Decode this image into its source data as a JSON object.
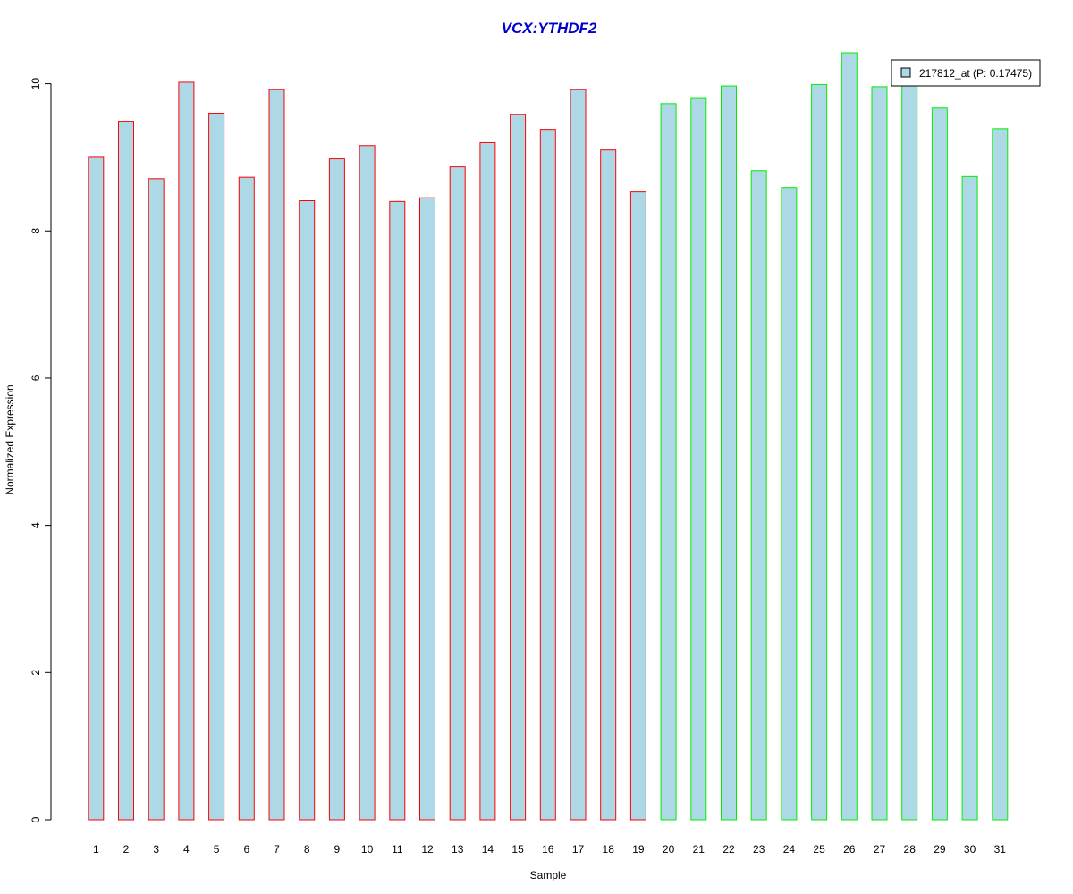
{
  "chart_data": {
    "type": "bar",
    "title": "VCX:YTHDF2",
    "xlabel": "Sample",
    "ylabel": "Normalized Expression",
    "categories": [
      "1",
      "2",
      "3",
      "4",
      "5",
      "6",
      "7",
      "8",
      "9",
      "10",
      "11",
      "12",
      "13",
      "14",
      "15",
      "16",
      "17",
      "18",
      "19",
      "20",
      "21",
      "22",
      "23",
      "24",
      "25",
      "26",
      "27",
      "28",
      "29",
      "30",
      "31"
    ],
    "series": [
      {
        "name": "217812_at (P: 0.17475)",
        "values": [
          9.0,
          9.49,
          8.71,
          10.02,
          9.6,
          8.73,
          9.92,
          8.41,
          8.98,
          9.16,
          8.4,
          8.45,
          8.87,
          9.2,
          9.58,
          9.38,
          9.92,
          9.1,
          8.53,
          9.73,
          9.8,
          9.97,
          8.82,
          8.59,
          9.99,
          10.42,
          9.96,
          10.02,
          9.67,
          8.74,
          9.39
        ]
      }
    ],
    "group_edge_colors": [
      "#ff0000",
      "#ff0000",
      "#ff0000",
      "#ff0000",
      "#ff0000",
      "#ff0000",
      "#ff0000",
      "#ff0000",
      "#ff0000",
      "#ff0000",
      "#ff0000",
      "#ff0000",
      "#ff0000",
      "#ff0000",
      "#ff0000",
      "#ff0000",
      "#ff0000",
      "#ff0000",
      "#ff0000",
      "#00ee00",
      "#00ee00",
      "#00ee00",
      "#00ee00",
      "#00ee00",
      "#00ee00",
      "#00ee00",
      "#00ee00",
      "#00ee00",
      "#00ee00",
      "#00ee00",
      "#00ee00"
    ],
    "bar_fill": "#add8e6",
    "title_color": "#0000cd",
    "ylim": [
      0,
      10.42
    ],
    "yticks": [
      "0",
      "2",
      "4",
      "6",
      "8",
      "10"
    ],
    "grid": false,
    "legend_position": "top-right"
  }
}
